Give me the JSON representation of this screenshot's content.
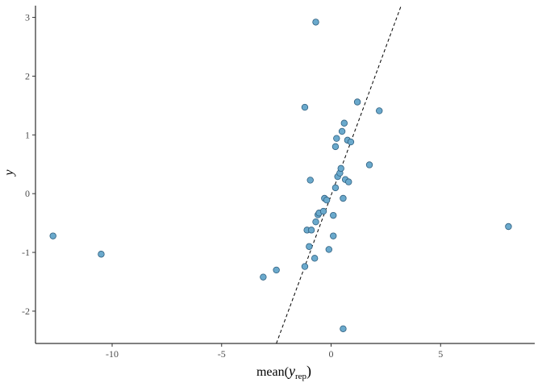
{
  "chart_data": {
    "type": "scatter",
    "xlabel": {
      "prefix": "mean(",
      "var": "y",
      "sub": "rep",
      "suffix": ")"
    },
    "ylabel": "y",
    "xlim": [
      -13.5,
      9.3
    ],
    "ylim": [
      -2.55,
      3.2
    ],
    "xticks": [
      -10,
      -5,
      0,
      5
    ],
    "yticks": [
      -2,
      -1,
      0,
      1,
      2,
      3
    ],
    "grid": false,
    "point_color": "#6aa9cc",
    "point_edge": "#2f5f7f",
    "reference_line": {
      "style": "dashed",
      "color": "#000000",
      "x_start": -2.5,
      "y_start": -2.55,
      "x_end": 3.2,
      "y_end": 3.2
    },
    "points": [
      {
        "x": -12.7,
        "y": -0.72
      },
      {
        "x": -10.5,
        "y": -1.03
      },
      {
        "x": -3.1,
        "y": -1.42
      },
      {
        "x": -2.5,
        "y": -1.3
      },
      {
        "x": -1.2,
        "y": 1.47
      },
      {
        "x": -1.2,
        "y": -1.24
      },
      {
        "x": -1.1,
        "y": -0.62
      },
      {
        "x": -1.0,
        "y": -0.9
      },
      {
        "x": -0.95,
        "y": 0.23
      },
      {
        "x": -0.9,
        "y": -0.62
      },
      {
        "x": -0.75,
        "y": -1.1
      },
      {
        "x": -0.7,
        "y": 2.92
      },
      {
        "x": -0.7,
        "y": -0.48
      },
      {
        "x": -0.6,
        "y": -0.36
      },
      {
        "x": -0.55,
        "y": -0.33
      },
      {
        "x": -0.35,
        "y": -0.3
      },
      {
        "x": -0.3,
        "y": -0.08
      },
      {
        "x": -0.2,
        "y": -0.11
      },
      {
        "x": -0.1,
        "y": -0.95
      },
      {
        "x": 0.1,
        "y": -0.37
      },
      {
        "x": 0.1,
        "y": -0.72
      },
      {
        "x": 0.2,
        "y": 0.8
      },
      {
        "x": 0.2,
        "y": 0.1
      },
      {
        "x": 0.25,
        "y": 0.94
      },
      {
        "x": 0.3,
        "y": 0.29
      },
      {
        "x": 0.4,
        "y": 0.35
      },
      {
        "x": 0.45,
        "y": 0.43
      },
      {
        "x": 0.5,
        "y": 1.06
      },
      {
        "x": 0.55,
        "y": -0.08
      },
      {
        "x": 0.6,
        "y": 1.2
      },
      {
        "x": 0.65,
        "y": 0.24
      },
      {
        "x": 0.75,
        "y": 0.91
      },
      {
        "x": 0.8,
        "y": 0.2
      },
      {
        "x": 0.9,
        "y": 0.88
      },
      {
        "x": 0.55,
        "y": -2.3
      },
      {
        "x": 1.2,
        "y": 1.56
      },
      {
        "x": 1.75,
        "y": 0.49
      },
      {
        "x": 2.2,
        "y": 1.41
      },
      {
        "x": 8.1,
        "y": -0.56
      }
    ]
  }
}
